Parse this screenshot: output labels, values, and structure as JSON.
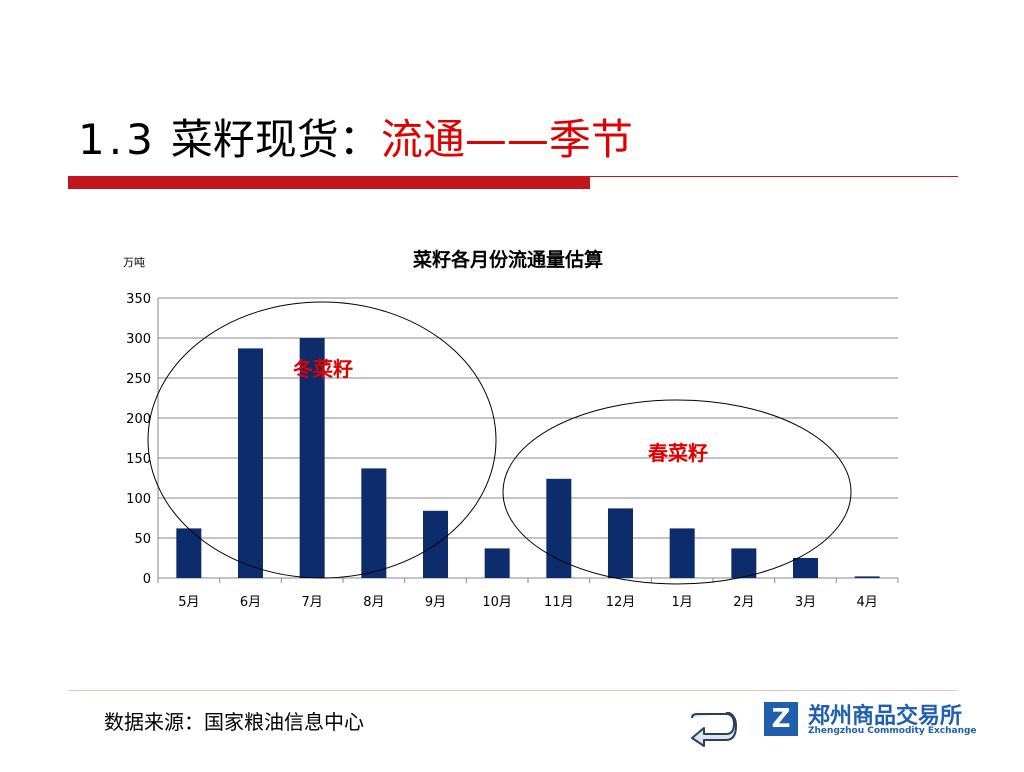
{
  "slide": {
    "title_number": "1.3",
    "title_main": "菜籽现货：",
    "title_accent": "流通——季节"
  },
  "chart_data": {
    "type": "bar",
    "title": "菜籽各月份流通量估算",
    "unit_label": "万吨",
    "categories": [
      "5月",
      "6月",
      "7月",
      "8月",
      "9月",
      "10月",
      "11月",
      "12月",
      "1月",
      "2月",
      "3月",
      "4月"
    ],
    "values": [
      62,
      287,
      300,
      137,
      84,
      37,
      124,
      87,
      62,
      37,
      25,
      2
    ],
    "ylim": [
      0,
      350
    ],
    "yticks": [
      0,
      50,
      100,
      150,
      200,
      250,
      300,
      350
    ],
    "grid": true,
    "bar_color": "#0d2c6c",
    "annotations": [
      {
        "label": "冬菜籽",
        "color": "#e00000"
      },
      {
        "label": "春菜籽",
        "color": "#e00000"
      }
    ]
  },
  "footer": {
    "source": "数据来源：国家粮油信息中心",
    "logo_cn": "郑州商品交易所",
    "logo_en": "Zhengzhou Commodity Exchange",
    "brand_color": "#1f5fae"
  }
}
